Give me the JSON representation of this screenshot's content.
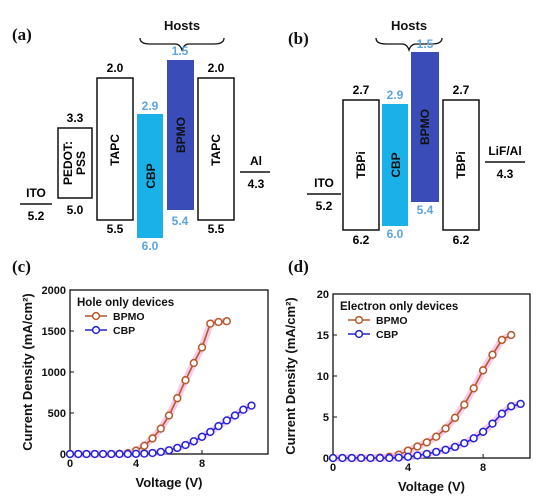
{
  "panels": {
    "a": "(a)",
    "b": "(b)",
    "c": "(c)",
    "d": "(d)"
  },
  "diagram_a": {
    "hosts_label": "Hosts",
    "layers": [
      {
        "key": "ito",
        "name": "ITO",
        "lumo": null,
        "homo": "5.2",
        "color": "#ffffff"
      },
      {
        "key": "pedot",
        "name": "PEDOT:\nPSS",
        "lumo": "3.3",
        "homo": "5.0",
        "color": "#ffffff"
      },
      {
        "key": "tapc1",
        "name": "TAPC",
        "lumo": "2.0",
        "homo": "5.5",
        "color": "#ffffff"
      },
      {
        "key": "cbp",
        "name": "CBP",
        "lumo": "2.9",
        "homo": "6.0",
        "color": "#1ab0e8"
      },
      {
        "key": "bpmo",
        "name": "BPMO",
        "lumo": "1.5",
        "homo": "5.4",
        "color": "#3a4cb8"
      },
      {
        "key": "tapc2",
        "name": "TAPC",
        "lumo": "2.0",
        "homo": "5.5",
        "color": "#ffffff"
      },
      {
        "key": "al",
        "name": "Al",
        "lumo": null,
        "homo": "4.3",
        "color": "#ffffff"
      }
    ]
  },
  "diagram_b": {
    "hosts_label": "Hosts",
    "layers": [
      {
        "key": "ito",
        "name": "ITO",
        "lumo": null,
        "homo": "5.2",
        "color": "#ffffff"
      },
      {
        "key": "tbpi1",
        "name": "TBPi",
        "lumo": "2.7",
        "homo": "6.2",
        "color": "#ffffff"
      },
      {
        "key": "cbp",
        "name": "CBP",
        "lumo": "2.9",
        "homo": "6.0",
        "color": "#1ab0e8"
      },
      {
        "key": "bpmo",
        "name": "BPMO",
        "lumo": "1.5",
        "homo": "5.4",
        "color": "#3a4cb8"
      },
      {
        "key": "tbpi2",
        "name": "TBPi",
        "lumo": "2.7",
        "homo": "6.2",
        "color": "#ffffff"
      },
      {
        "key": "lifal",
        "name": "LiF/Al",
        "lumo": null,
        "homo": "4.3",
        "color": "#ffffff"
      }
    ]
  },
  "chart_data": [
    {
      "type": "line",
      "panel": "(c)",
      "title": "Hole only devices",
      "xlabel": "Voltage (V)",
      "ylabel": "Current Density (mA/cm²)",
      "xlim": [
        0,
        12
      ],
      "ylim": [
        0,
        2000
      ],
      "xticks": [
        "0",
        "4",
        "8"
      ],
      "yticks": [
        "0",
        "500",
        "1000",
        "1500",
        "2000"
      ],
      "series": [
        {
          "name": "BPMO",
          "color": "#b5582a",
          "x": [
            0,
            0.5,
            1,
            1.5,
            2,
            2.5,
            3,
            3.5,
            4,
            4.5,
            5,
            5.5,
            6,
            6.5,
            7,
            7.5,
            8,
            8.5,
            9,
            9.5
          ],
          "y": [
            0,
            0,
            0,
            0,
            0,
            0,
            2,
            10,
            40,
            100,
            190,
            310,
            470,
            680,
            900,
            1110,
            1300,
            1590,
            1610,
            1620
          ]
        },
        {
          "name": "CBP",
          "color": "#2222dd",
          "x": [
            0,
            0.5,
            1,
            1.5,
            2,
            2.5,
            3,
            3.5,
            4,
            4.5,
            5,
            5.5,
            6,
            6.5,
            7,
            7.5,
            8,
            8.5,
            9,
            9.5,
            10,
            10.5,
            11
          ],
          "y": [
            0,
            0,
            0,
            0,
            0,
            0,
            0,
            0,
            2,
            5,
            12,
            25,
            45,
            75,
            110,
            155,
            210,
            270,
            340,
            410,
            470,
            540,
            590
          ]
        }
      ]
    },
    {
      "type": "line",
      "panel": "(d)",
      "title": "Electron only devices",
      "xlabel": "Voltage (V)",
      "ylabel": "Current Density (mA/cm²)",
      "xlim": [
        0,
        10.5
      ],
      "ylim": [
        0,
        20
      ],
      "xticks": [
        "0",
        "4",
        "8"
      ],
      "yticks": [
        "0",
        "5",
        "10",
        "15",
        "20"
      ],
      "series": [
        {
          "name": "BPMO",
          "color": "#b5582a",
          "x": [
            0,
            0.5,
            1,
            1.5,
            2,
            2.5,
            3,
            3.5,
            4,
            4.5,
            5,
            5.5,
            6,
            6.5,
            7,
            7.5,
            8,
            8.5,
            9,
            9.5
          ],
          "y": [
            0,
            0,
            0,
            0,
            0,
            0.05,
            0.15,
            0.4,
            0.9,
            1.4,
            1.9,
            2.6,
            3.6,
            4.9,
            6.5,
            8.5,
            10.7,
            12.6,
            14.4,
            15.0
          ]
        },
        {
          "name": "CBP",
          "color": "#2222dd",
          "x": [
            0,
            0.5,
            1,
            1.5,
            2,
            2.5,
            3,
            3.5,
            4,
            4.5,
            5,
            5.5,
            6,
            6.5,
            7,
            7.5,
            8,
            8.5,
            9,
            9.5,
            10
          ],
          "y": [
            0,
            0,
            0,
            0,
            0,
            0,
            0,
            0.05,
            0.15,
            0.3,
            0.5,
            0.75,
            1.0,
            1.35,
            1.8,
            2.4,
            3.2,
            4.2,
            5.4,
            6.3,
            6.6
          ]
        }
      ]
    }
  ]
}
